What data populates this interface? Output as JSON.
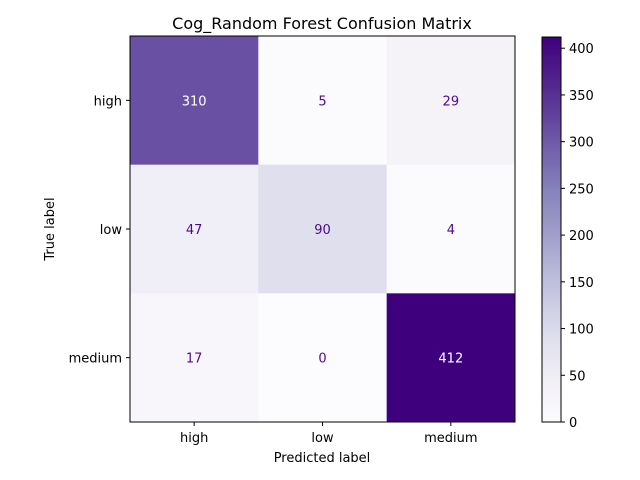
{
  "chart_data": {
    "type": "heatmap",
    "title": "Cog_Random Forest Confusion Matrix",
    "xlabel": "Predicted label",
    "ylabel": "True label",
    "x_categories": [
      "high",
      "low",
      "medium"
    ],
    "y_categories": [
      "high",
      "low",
      "medium"
    ],
    "values": [
      [
        310,
        5,
        29
      ],
      [
        47,
        90,
        4
      ],
      [
        17,
        0,
        412
      ]
    ],
    "colormap": "Purples",
    "colorbar": {
      "min": 0,
      "max": 412,
      "ticks": [
        0,
        50,
        100,
        150,
        200,
        250,
        300,
        350,
        400
      ]
    },
    "text_color_dark": "#4b0c8c",
    "text_color_light": "#ffffff"
  }
}
